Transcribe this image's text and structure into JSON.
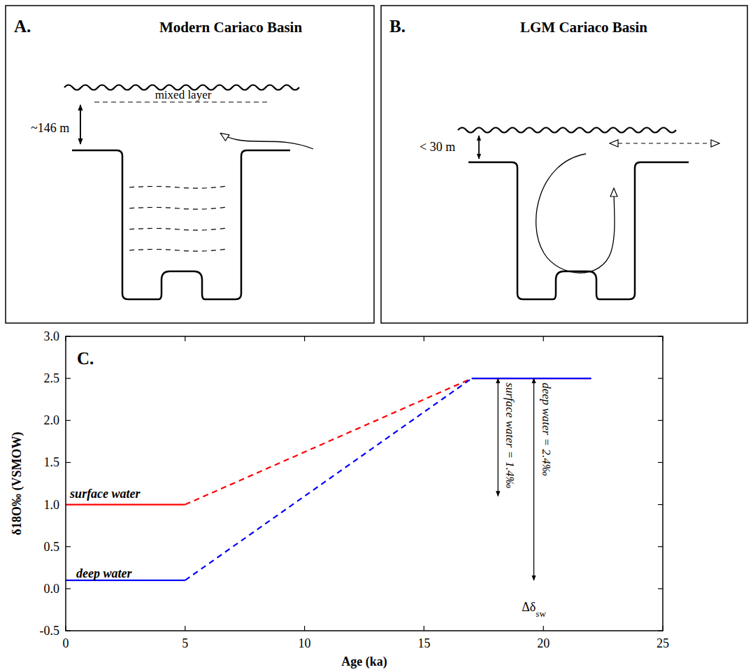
{
  "diagrams": [
    {
      "letter": "A.",
      "title": "Modern Cariaco Basin",
      "labels": {
        "mixed_layer": "mixed layer",
        "depth": "~146 m"
      }
    },
    {
      "letter": "B.",
      "title": "LGM Cariaco Basin",
      "labels": {
        "depth": "< 30 m"
      }
    }
  ],
  "chart_data": {
    "type": "line",
    "panel_label": "C.",
    "x_label": "Age (ka)",
    "y_label": "δ18O‰ (VSMOW)",
    "xlim": [
      0,
      25
    ],
    "xticks": [
      0,
      5,
      10,
      15,
      20,
      25
    ],
    "ylim": [
      -0.5,
      3
    ],
    "yticks": [
      {
        "value": -0.5,
        "label": "-0.5"
      },
      {
        "value": 0,
        "label": "0.0"
      },
      {
        "value": 0.5,
        "label": "0.5"
      },
      {
        "value": 1,
        "label": "1.0"
      },
      {
        "value": 1.5,
        "label": "1.5"
      },
      {
        "value": 2,
        "label": "2.0"
      },
      {
        "value": 2.5,
        "label": "2.5"
      },
      {
        "value": 3,
        "label": "3.0"
      }
    ],
    "grid": false,
    "series": [
      {
        "color": "#ff0000",
        "line_style": "solid",
        "x": [
          0,
          5
        ],
        "values": [
          1.0,
          1.0
        ]
      },
      {
        "color": "#ff0000",
        "line_style": "dashed",
        "x": [
          5,
          17
        ],
        "values": [
          1.0,
          2.5
        ]
      },
      {
        "color": "#ff0000",
        "line_style": "solid",
        "x": [
          17,
          22
        ],
        "values": [
          2.5,
          2.5
        ]
      },
      {
        "color": "#0000ff",
        "line_style": "solid",
        "x": [
          0,
          5
        ],
        "values": [
          0.1,
          0.1
        ]
      },
      {
        "color": "#0000ff",
        "line_style": "dashed",
        "x": [
          5,
          17
        ],
        "values": [
          0.1,
          2.5
        ]
      },
      {
        "color": "#0000ff",
        "line_style": "solid",
        "x": [
          17,
          22
        ],
        "values": [
          2.5,
          2.5
        ]
      }
    ],
    "annotations": [
      {
        "text": "surface water",
        "x": 1.65,
        "y": 1.08
      },
      {
        "text": "deep water",
        "x": 1.6,
        "y": 0.13
      },
      {
        "text": "surface water = 1.4‰",
        "x": 18.1,
        "y_from": 2.5,
        "y_to": 1.1
      },
      {
        "text": "deep water = 2.4‰",
        "x": 19.6,
        "y_from": 2.5,
        "y_to": 0.1
      },
      {
        "text": "Δδ",
        "subscript": "sw",
        "x": 19.6,
        "y": -0.27
      }
    ]
  }
}
